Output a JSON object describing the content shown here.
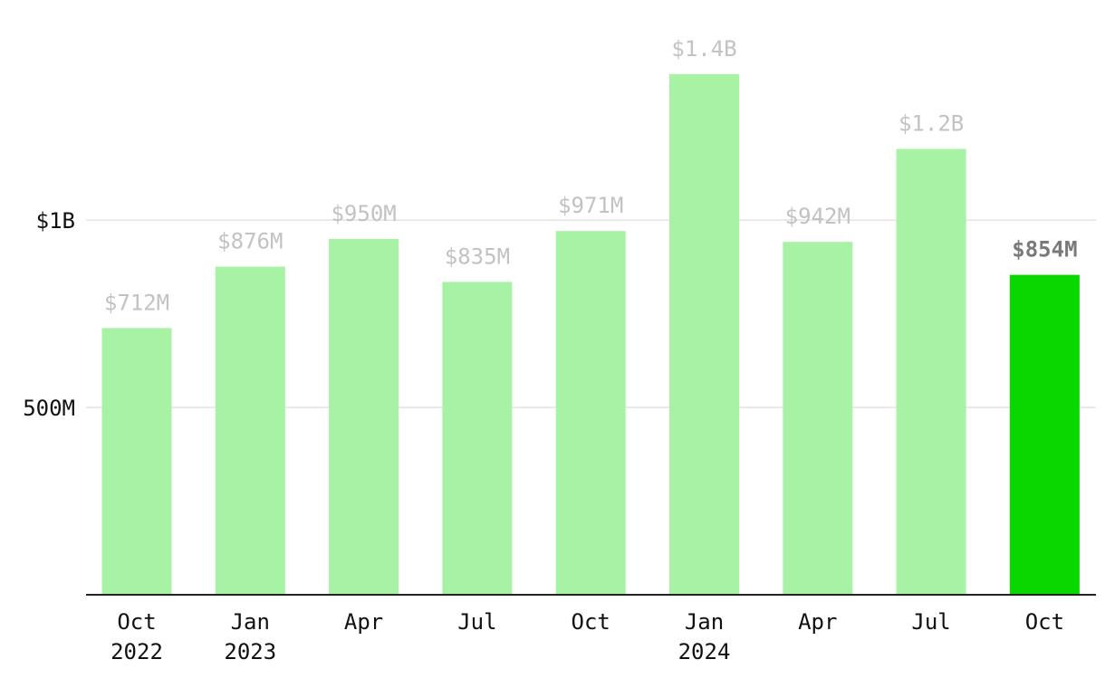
{
  "chart_data": {
    "type": "bar",
    "categories": [
      "Oct 2022",
      "Jan 2023",
      "Apr",
      "Jul",
      "Oct",
      "Jan 2024",
      "Apr",
      "Jul",
      "Oct"
    ],
    "x_tick_labels": [
      [
        "Oct",
        "2022"
      ],
      [
        "Jan",
        "2023"
      ],
      [
        "Apr",
        ""
      ],
      [
        "Jul",
        ""
      ],
      [
        "Oct",
        ""
      ],
      [
        "Jan",
        "2024"
      ],
      [
        "Apr",
        ""
      ],
      [
        "Jul",
        ""
      ],
      [
        "Oct",
        ""
      ]
    ],
    "values": [
      712,
      876,
      950,
      835,
      971,
      1390,
      942,
      1190,
      854
    ],
    "value_labels": [
      "$712M",
      "$876M",
      "$950M",
      "$835M",
      "$971M",
      "$1.4B",
      "$942M",
      "$1.2B",
      "$854M"
    ],
    "unit": "millions of dollars",
    "ylim": [
      0,
      1520
    ],
    "y_ticks": [
      {
        "value": 500,
        "label": "500M"
      },
      {
        "value": 1000,
        "label": "$1B"
      }
    ],
    "highlight_index": 8,
    "colors": {
      "bar": "#a8f2a5",
      "bar_highlight": "#08d800",
      "label": "#c2c2c2",
      "label_highlight": "#7a7a7a"
    },
    "grid": true,
    "title": "",
    "xlabel": "",
    "ylabel": ""
  }
}
